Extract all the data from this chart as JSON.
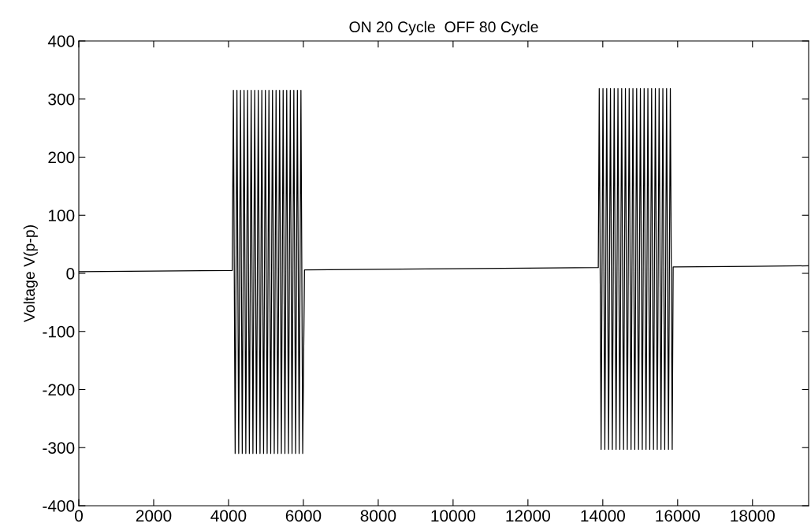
{
  "chart_data": {
    "type": "line",
    "title": "ON 20 Cycle  OFF 80 Cycle",
    "ylabel": "Voltage V(p-p)",
    "x": [
      0,
      2000,
      4100,
      4130,
      4177,
      4225,
      4272,
      4320,
      4367,
      4415,
      4462,
      4510,
      4557,
      4605,
      4652,
      4700,
      4747,
      4795,
      4842,
      4890,
      4937,
      4985,
      5032,
      5080,
      5127,
      5175,
      5222,
      5270,
      5317,
      5365,
      5412,
      5460,
      5507,
      5555,
      5602,
      5650,
      5697,
      5745,
      5792,
      5840,
      5887,
      5935,
      5982,
      6030,
      8000,
      10000,
      12000,
      13880,
      13905,
      13955,
      14005,
      14055,
      14105,
      14155,
      14205,
      14255,
      14305,
      14355,
      14405,
      14455,
      14505,
      14555,
      14605,
      14655,
      14705,
      14755,
      14805,
      14855,
      14905,
      14955,
      15005,
      15055,
      15105,
      15155,
      15205,
      15255,
      15305,
      15355,
      15405,
      15455,
      15505,
      15555,
      15605,
      15655,
      15705,
      15755,
      15805,
      15855,
      15880,
      18000,
      19500
    ],
    "series": [
      {
        "color": "#000000",
        "values": [
          3,
          4,
          5,
          315,
          -310,
          315,
          -310,
          315,
          -310,
          315,
          -310,
          315,
          -310,
          315,
          -310,
          315,
          -310,
          315,
          -310,
          315,
          -310,
          315,
          -310,
          315,
          -310,
          315,
          -310,
          315,
          -310,
          315,
          -310,
          315,
          -310,
          315,
          -310,
          315,
          -310,
          315,
          -310,
          315,
          -310,
          315,
          -310,
          6,
          7,
          8,
          9,
          10,
          318,
          -303,
          318,
          -303,
          318,
          -303,
          318,
          -303,
          318,
          -303,
          318,
          -303,
          318,
          -303,
          318,
          -303,
          318,
          -303,
          318,
          -303,
          318,
          -303,
          318,
          -303,
          318,
          -303,
          318,
          -303,
          318,
          -303,
          318,
          -303,
          318,
          -303,
          318,
          -303,
          318,
          -303,
          318,
          -303,
          11,
          12,
          13
        ]
      }
    ],
    "xlim": [
      0,
      19500
    ],
    "xticks": [
      0,
      2000,
      4000,
      6000,
      8000,
      10000,
      12000,
      14000,
      16000,
      18000
    ],
    "ylim": [
      -400,
      400
    ],
    "yticks": [
      -400,
      -300,
      -200,
      -100,
      0,
      100,
      200,
      300,
      400
    ],
    "grid": false,
    "marker": "none",
    "line_style": "solid"
  }
}
